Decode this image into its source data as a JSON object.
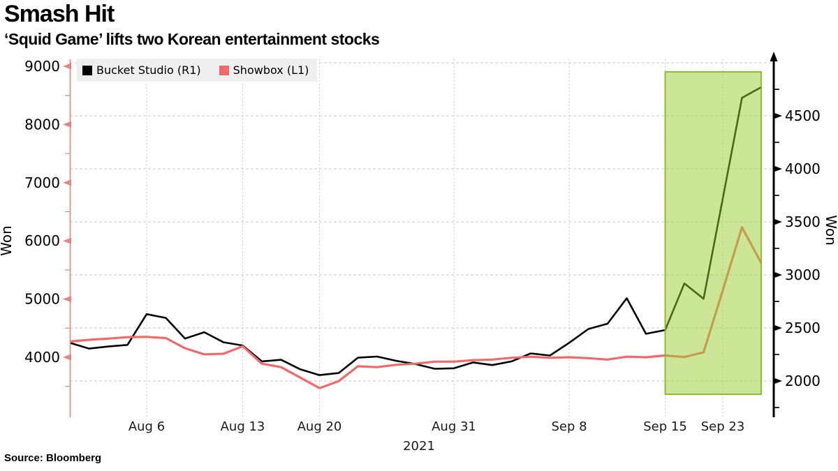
{
  "header": {
    "title": "Smash Hit",
    "subtitle": "‘Squid Game’ lifts two Korean entertainment stocks"
  },
  "source": "Source:  Bloomberg",
  "legend": {
    "items": [
      {
        "label": "Bucket Studio (R1)",
        "color": "#000000"
      },
      {
        "label": "Showbox (L1)",
        "color": "#f2696a"
      }
    ]
  },
  "chart_data": {
    "type": "line",
    "title": "Smash Hit",
    "subtitle": "‘Squid Game’ lifts two Korean entertainment stocks",
    "x_unit": "trading-day",
    "year_label": "2021",
    "dates": [
      "Aug 2",
      "Aug 3",
      "Aug 4",
      "Aug 5",
      "Aug 6",
      "Aug 9",
      "Aug 10",
      "Aug 11",
      "Aug 12",
      "Aug 13",
      "Aug 17",
      "Aug 18",
      "Aug 19",
      "Aug 20",
      "Aug 23",
      "Aug 24",
      "Aug 25",
      "Aug 26",
      "Aug 27",
      "Aug 30",
      "Aug 31",
      "Sep 1",
      "Sep 2",
      "Sep 3",
      "Sep 6",
      "Sep 7",
      "Sep 8",
      "Sep 9",
      "Sep 10",
      "Sep 13",
      "Sep 14",
      "Sep 15",
      "Sep 16",
      "Sep 17",
      "Sep 23",
      "Sep 24",
      "Sep 27"
    ],
    "series": [
      {
        "name": "Bucket Studio (R1)",
        "axis": "right",
        "color": "#000000",
        "width": 2.6,
        "values": [
          2360,
          2305,
          2325,
          2340,
          2630,
          2595,
          2400,
          2460,
          2365,
          2335,
          2185,
          2200,
          2110,
          2055,
          2075,
          2220,
          2230,
          2190,
          2160,
          2115,
          2120,
          2175,
          2150,
          2185,
          2260,
          2240,
          2360,
          2490,
          2540,
          2780,
          2445,
          2480,
          2920,
          2775,
          3720,
          4670,
          4770
        ]
      },
      {
        "name": "Showbox (L1)",
        "axis": "left",
        "color": "#f2696a",
        "width": 3.2,
        "values": [
          4270,
          4300,
          4320,
          4345,
          4350,
          4330,
          4155,
          4050,
          4060,
          4190,
          3890,
          3830,
          3650,
          3470,
          3590,
          3845,
          3830,
          3870,
          3890,
          3925,
          3925,
          3950,
          3960,
          3990,
          4010,
          3990,
          4000,
          3985,
          3960,
          4010,
          4000,
          4030,
          4005,
          4085,
          5150,
          6235,
          5620
        ]
      }
    ],
    "left_axis": {
      "label": "Won",
      "color": "#e8837f",
      "ticks": [
        9000,
        8000,
        7000,
        6000,
        5000,
        4000
      ],
      "minor_ticks": [
        8500,
        7500,
        6500,
        5500,
        4500,
        3500
      ]
    },
    "right_axis": {
      "label": "Won",
      "color": "#000000",
      "ticks": [
        4500,
        4000,
        3500,
        3000,
        2500,
        2000
      ],
      "minor_ticks": [
        4750,
        4250,
        3750,
        3250,
        2750,
        2250,
        1750
      ],
      "gridlines": [
        5000,
        4500,
        4000,
        3500,
        3000,
        2500,
        2000
      ]
    },
    "x_ticks": [
      "Aug 6",
      "Aug 13",
      "Aug 20",
      "Aug 31",
      "Sep 8",
      "Sep 15",
      "Sep 23"
    ],
    "highlight": {
      "start_date": "Sep 15",
      "end_date": "Sep 27",
      "fill": "rgba(154,205,50,0.5)",
      "stroke": "rgba(134,182,38,0.9)"
    },
    "grid_color": "#c9c9c9"
  }
}
